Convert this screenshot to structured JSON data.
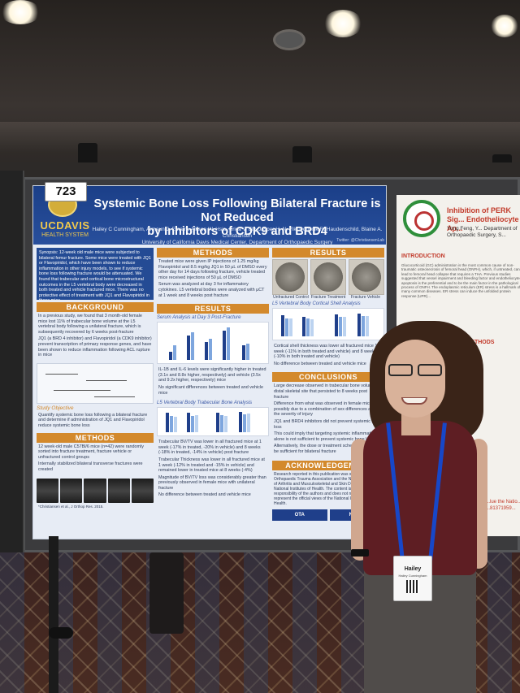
{
  "poster_number": "723",
  "poster": {
    "title_line1": "Systemic Bone Loss Following Bilateral Fracture is Not Reduced",
    "title_line2": "by Inhibitors of CDK9 and BRD4",
    "authors": "Hailey C Cunningham, Armaun J. Emami, Allison W. Hsia, Erica V. Ely, Jasper H. N. Yik, Dominik R. Haudenschild, Blaine A. Christiansen",
    "affiliation": "University of California Davis Medical Center, Department of Orthopaedic Surgery",
    "twitter": "Twitter: @ChristiansenLab",
    "logo_name": "UCDAVIS",
    "logo_sub": "HEALTH SYSTEM",
    "synopsis": "Synopsis: 12-week old male mice were subjected to bilateral femur fracture. Some mice were treated with JQ1 or Flavopiridol, which have been shown to reduce inflammation in other injury models, to see if systemic bone loss following fracture would be attenuated. We found that trabecular and cortical bone microstructural outcomes in the L5 vertebral body were decreased in both treated and vehicle fractured mice. There was no protective effect of treatment with JQ1 and Flavopiridol in these mice.",
    "background_head": "BACKGROUND",
    "background_p1": "In a previous study, we found that 3 month-old female mice lost 11% of trabecular bone volume at the L5 vertebral body following a unilateral fracture, which is subsequently recovered by 6 weeks post-fracture",
    "background_p2": "JQ1 (a BRD 4 inhibitor) and Flavopiridol (a CDK9 inhibitor) prevent transcription of primary response genes, and have been shown to reduce inflammation following ACL rupture in mice",
    "objective_title": "Study Objective",
    "objective": "Quantify systemic bone loss following a bilateral fracture and determine if administration of JQ1 and Flavopiridol reduce systemic bone loss",
    "methods_head": "METHODS",
    "methods_p1": "12 week-old male C57Bl/6 mice (n=42) were randomly sorted into fracture treatment, fracture vehicle or unfractured control groups",
    "methods_p2": "Internally stabilized bilateral transverse fractures were created",
    "xray_caption": "*Christiansen et al., J Orthop Res. 2015.",
    "methods2_head": "METHODS",
    "methods2_p1": "Treated mice were given IP injections of 1.25 mg/kg Flavopiridol and 8.5 mg/kg JQ1 in 50 µL of DMSO every other day for 14 days following fracture, vehicle treated mice received injections of 50 µL of DMSO",
    "methods2_p2": "Serum was analyzed at day 3 for inflammatory cytokines. L5 vertebral bodies were analyzed with µCT at 1 week and 8 weeks post fracture",
    "results_head": "RESULTS",
    "serum_title": "Serum Analysis at Day 3 Post-Fracture",
    "serum_ticks": [
      "IL-1β",
      "IL-1β",
      "IL-6",
      "IL-6",
      "TNF-α"
    ],
    "results_p1": "IL-1B and IL-6 levels were significantly higher in treated (3.1x and 8.8x higher, respectively) and vehicle (3.5x and 9.2x higher, respectively) mice",
    "results_p2": "No significant differences between treated and vehicle mice",
    "trab_title": "L5 Vertebral Body Trabecular Bone Analysis",
    "results_p3": "Trabecular BV/TV was lower in all fractured mice at 1 week (-17% in treated, -20% in vehicle) and 8 weeks (-18% in treated, -14% in vehicle) post fracture",
    "results_p4": "Trabecular Thickness was lower in all fractured mice at 1 week (-12% in treated and -15% in vehicle) and remained lower in treated mice at 8 weeks (-4%)",
    "results_p5": "Magnitude of BV/TV loss was considerably greater than previously observed in female mice with unilateral fracture",
    "results_p6": "No difference between treated and vehicle mice",
    "results2_head": "RESULTS",
    "bone_labels": [
      "Unfractured Control",
      "Fracture Treatment",
      "Fracture Vehicle"
    ],
    "cort_title": "L5 Vertebral Body Cortical Shell Analysis",
    "results2_p1": "Cortical shell thickness was lower all fractured mice 1 week (-11% in both treated and vehicle) and 8 weeks (-10% in both treated and vehicle)",
    "results2_p2": "No difference between treated and vehicle mice",
    "conclusions_head": "CONCLUSIONS",
    "conclusions_p1": "Large decrease observed in trabecular bone volume at distal skeletal site that persisted to 8 weeks post fracture",
    "conclusions_p2": "Difference from what was observed in female mice possibly due to a combination of sex differences and the severity of injury",
    "conclusions_p3": "JQ1 and BRD4 inhibitors did not prevent systemic bone loss",
    "conclusions_p4": "This could imply that targeting systemic inflammation alone is not sufficient to prevent systemic bone loss",
    "conclusions_p5": "Alternatively, the dose or treatment schedule may not be sufficient for bilateral fracture",
    "ack_head": "ACKNOWLEDGEMENT",
    "ack_text": "Research reported in this publication was supported by the Orthopaedic Trauma Association and the National Institute of Arthritis and Musculoskeletal and Skin Diseases of the National Institutes of Health. The content is solely the responsibility of the authors and does not necessarily represent the official views of the National Institutes of Health.",
    "ack_logo1": "OTA",
    "ack_logo2": "NIAMS"
  },
  "poster2": {
    "title": "Inhibition of PERK Sig... Endotheliocyte Ap...",
    "authors": "Yong Feng, Y... Department of Orthopaedic Surgery, S...",
    "intro_head": "INTRODUCTION",
    "intro_text": "Glucocorticoid (GC) administration is the most common cause of non-traumatic osteonecrosis of femoral head (ONFH), which, if untreated, can lead to femoral head collapse that requires a THA. Previous studies suggested that vessel impairment and bleeding factor and endotheliocytes apoptosis is the preferential and to be the main factor in the pathological process of ONFH. The endoplasmic reticulum (ER) stress is a hallmark of many common diseases. ER stress can induce the unfolded protein response (UPR)...",
    "methods_head": "...S & METHODS",
    "foot": "...lue the Natio... ...81371959..."
  },
  "badge": {
    "name": "Hailey",
    "full": "Hailey Cunningham"
  }
}
